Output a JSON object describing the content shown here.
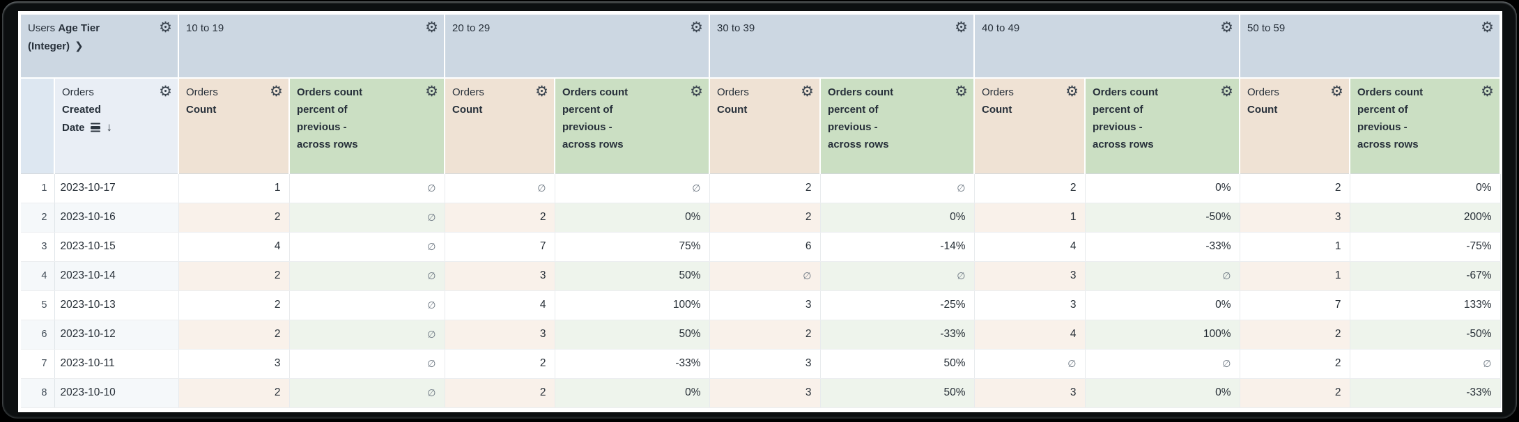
{
  "icons": {
    "gear": "⚙",
    "chevron_right": "❯",
    "sort_desc": "↓",
    "segments": "row-grouping-bars"
  },
  "colors": {
    "pivot_header_bg": "#ccd7e2",
    "row_dim_header_bg": "#e9eef5",
    "rownum_header_bg": "#dde7f1",
    "count_header_bg": "#efe2d4",
    "percent_header_bg": "#cbdfc3",
    "even_row_bg": "#f5f8fa",
    "even_row_count_bg": "#f9f1ea",
    "even_row_percent_bg": "#eef4ec",
    "text": "#262e36",
    "null_text": "#6b7681"
  },
  "table": {
    "corner": {
      "view": "Users",
      "field": "Age Tier (Integer)"
    },
    "row_dimension": {
      "view": "Orders",
      "field": "Created Date"
    },
    "pivot_values": [
      "10 to 19",
      "20 to 29",
      "30 to 39",
      "40 to 49",
      "50 to 59"
    ],
    "measures": {
      "count": {
        "view": "Orders",
        "field": "Count"
      },
      "percent_calc": "Orders count percent of previous - across rows"
    },
    "null_symbol": "∅",
    "rows": [
      {
        "num": "1",
        "date": "2023-10-17",
        "values": [
          "1",
          "∅",
          "∅",
          "∅",
          "2",
          "∅",
          "2",
          "0%",
          "2",
          "0%"
        ]
      },
      {
        "num": "2",
        "date": "2023-10-16",
        "values": [
          "2",
          "∅",
          "2",
          "0%",
          "2",
          "0%",
          "1",
          "-50%",
          "3",
          "200%"
        ]
      },
      {
        "num": "3",
        "date": "2023-10-15",
        "values": [
          "4",
          "∅",
          "7",
          "75%",
          "6",
          "-14%",
          "4",
          "-33%",
          "1",
          "-75%"
        ]
      },
      {
        "num": "4",
        "date": "2023-10-14",
        "values": [
          "2",
          "∅",
          "3",
          "50%",
          "∅",
          "∅",
          "3",
          "∅",
          "1",
          "-67%"
        ]
      },
      {
        "num": "5",
        "date": "2023-10-13",
        "values": [
          "2",
          "∅",
          "4",
          "100%",
          "3",
          "-25%",
          "3",
          "0%",
          "7",
          "133%"
        ]
      },
      {
        "num": "6",
        "date": "2023-10-12",
        "values": [
          "2",
          "∅",
          "3",
          "50%",
          "2",
          "-33%",
          "4",
          "100%",
          "2",
          "-50%"
        ]
      },
      {
        "num": "7",
        "date": "2023-10-11",
        "values": [
          "3",
          "∅",
          "2",
          "-33%",
          "3",
          "50%",
          "∅",
          "∅",
          "2",
          "∅"
        ]
      },
      {
        "num": "8",
        "date": "2023-10-10",
        "values": [
          "2",
          "∅",
          "2",
          "0%",
          "3",
          "50%",
          "3",
          "0%",
          "2",
          "-33%"
        ]
      }
    ]
  }
}
